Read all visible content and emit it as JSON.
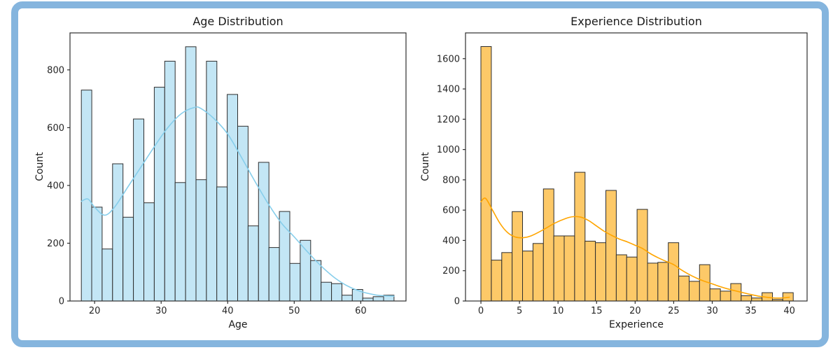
{
  "frame": {
    "border_color": "#85b5de",
    "background": "#ffffff"
  },
  "chart_data": [
    {
      "type": "bar",
      "variant": "histogram_with_kde",
      "title": "Age Distribution",
      "xlabel": "Age",
      "ylabel": "Count",
      "bar_color": "#c3e6f5",
      "bar_edge_color": "#2e2e2e",
      "kde_color": "#87ceeb",
      "bin_start": 18,
      "bin_width": 1.5667,
      "values": [
        730,
        325,
        180,
        475,
        290,
        630,
        340,
        740,
        830,
        410,
        880,
        420,
        830,
        395,
        715,
        605,
        260,
        480,
        185,
        310,
        130,
        210,
        140,
        65,
        60,
        20,
        40,
        10,
        15,
        20
      ],
      "xticks": [
        20,
        30,
        40,
        50,
        60
      ],
      "yticks": [
        0,
        200,
        400,
        600,
        800
      ],
      "xlim": [
        16.3,
        66.8
      ],
      "ylim": [
        0,
        928
      ],
      "grid": false,
      "legend": null,
      "kde_points": [
        [
          18,
          345
        ],
        [
          19,
          353
        ],
        [
          20,
          325
        ],
        [
          21.5,
          297
        ],
        [
          23,
          325
        ],
        [
          25,
          395
        ],
        [
          27,
          465
        ],
        [
          29,
          535
        ],
        [
          31,
          600
        ],
        [
          33,
          648
        ],
        [
          35,
          670
        ],
        [
          36,
          666
        ],
        [
          38,
          630
        ],
        [
          40,
          578
        ],
        [
          42,
          500
        ],
        [
          44,
          418
        ],
        [
          46,
          340
        ],
        [
          48,
          272
        ],
        [
          50,
          222
        ],
        [
          52,
          170
        ],
        [
          54,
          122
        ],
        [
          56,
          82
        ],
        [
          58,
          52
        ],
        [
          60,
          33
        ],
        [
          62,
          22
        ],
        [
          63.5,
          18
        ],
        [
          65,
          17
        ]
      ]
    },
    {
      "type": "bar",
      "variant": "histogram_with_kde",
      "title": "Experience Distribution",
      "xlabel": "Experience",
      "ylabel": "Count",
      "bar_color": "#fdc968",
      "bar_edge_color": "#2e2e2e",
      "kde_color": "#ffa500",
      "bin_start": 0,
      "bin_width": 1.35,
      "values": [
        1680,
        270,
        320,
        590,
        330,
        380,
        740,
        430,
        430,
        850,
        395,
        385,
        730,
        305,
        290,
        605,
        250,
        255,
        385,
        165,
        130,
        240,
        80,
        65,
        115,
        35,
        20,
        55,
        10,
        55
      ],
      "xticks": [
        0,
        5,
        10,
        15,
        20,
        25,
        30,
        35,
        40
      ],
      "yticks": [
        0,
        200,
        400,
        600,
        800,
        1000,
        1200,
        1400,
        1600
      ],
      "xlim": [
        -2,
        42.3
      ],
      "ylim": [
        0,
        1770
      ],
      "grid": false,
      "legend": null,
      "kde_points": [
        [
          0,
          655
        ],
        [
          0.6,
          678
        ],
        [
          1.5,
          600
        ],
        [
          2.5,
          510
        ],
        [
          3.5,
          450
        ],
        [
          4.5,
          422
        ],
        [
          5.5,
          418
        ],
        [
          6.5,
          430
        ],
        [
          8,
          468
        ],
        [
          9.5,
          512
        ],
        [
          11,
          545
        ],
        [
          12,
          557
        ],
        [
          13,
          553
        ],
        [
          14,
          530
        ],
        [
          15,
          495
        ],
        [
          16,
          460
        ],
        [
          17,
          432
        ],
        [
          18,
          408
        ],
        [
          19,
          390
        ],
        [
          20,
          368
        ],
        [
          21,
          345
        ],
        [
          22,
          312
        ],
        [
          23,
          285
        ],
        [
          24,
          262
        ],
        [
          25,
          240
        ],
        [
          26,
          205
        ],
        [
          27,
          175
        ],
        [
          28,
          150
        ],
        [
          29,
          130
        ],
        [
          30,
          113
        ],
        [
          31,
          95
        ],
        [
          32,
          80
        ],
        [
          33,
          67
        ],
        [
          34,
          55
        ],
        [
          35,
          43
        ],
        [
          36,
          32
        ],
        [
          37,
          25
        ],
        [
          38,
          20
        ],
        [
          39,
          20
        ],
        [
          40,
          25
        ]
      ]
    }
  ]
}
